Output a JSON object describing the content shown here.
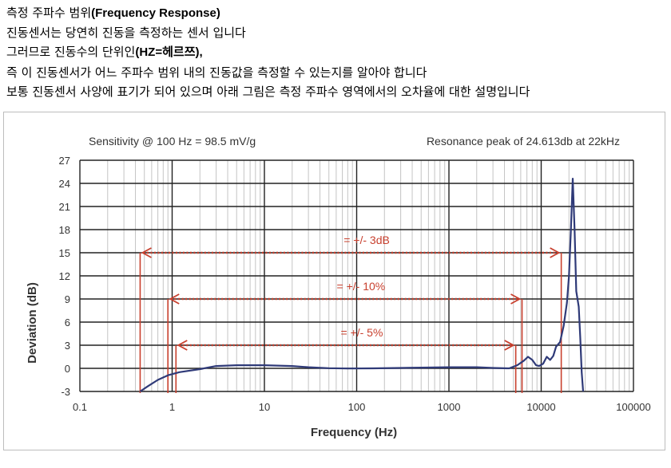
{
  "intro": {
    "line1_text": "측정 주파수 범위",
    "line1_bold": "(Frequency Response)",
    "line2": "진동센서는 당연히 진동을 측정하는 센서 입니다",
    "line3_text": "그러므로 진동수의 단위인",
    "line3_bold": "(HZ=헤르쯔),",
    "line4": "즉 이 진동센서가 어느 주파수 범위 내의 진동값을 측정할 수 있는지를 알아야 합니다",
    "line5": "보통 진동센서 사양에 표기가 되어 있으며 아래 그림은 측정 주파수 영역에서의 오차율에 대한 설명입니다"
  },
  "chart_data": {
    "type": "line",
    "top_left_note": "Sensitivity @ 100 Hz = 98.5 mV/g",
    "top_right_note": "Resonance peak of 24.613db at 22kHz",
    "xlabel": "Frequency (Hz)",
    "ylabel": "Deviation (dB)",
    "x_scale": "log",
    "xlim": [
      0.1,
      100000
    ],
    "ylim": [
      -3,
      27
    ],
    "x_ticks": [
      "0.1",
      "1",
      "10",
      "100",
      "1000",
      "10000",
      "100000"
    ],
    "y_ticks": [
      "-3",
      "0",
      "3",
      "6",
      "9",
      "12",
      "15",
      "18",
      "21",
      "24",
      "27"
    ],
    "grid": true,
    "line_color": "#2f3a78",
    "annotation_color": "#c8402e",
    "series": [
      {
        "points": [
          [
            0.45,
            -3
          ],
          [
            0.55,
            -2.3
          ],
          [
            0.7,
            -1.5
          ],
          [
            0.9,
            -0.9
          ],
          [
            1.2,
            -0.5
          ],
          [
            2,
            -0.1
          ],
          [
            3,
            0.3
          ],
          [
            5,
            0.4
          ],
          [
            10,
            0.4
          ],
          [
            20,
            0.3
          ],
          [
            30,
            0.15
          ],
          [
            50,
            0.02
          ],
          [
            80,
            -0.02
          ],
          [
            150,
            0.0
          ],
          [
            300,
            0.05
          ],
          [
            600,
            0.1
          ],
          [
            1000,
            0.15
          ],
          [
            2000,
            0.15
          ],
          [
            3000,
            0.05
          ],
          [
            4500,
            0.0
          ],
          [
            5500,
            0.4
          ],
          [
            6500,
            1.0
          ],
          [
            7200,
            1.5
          ],
          [
            8000,
            1.1
          ],
          [
            8800,
            0.4
          ],
          [
            9500,
            0.3
          ],
          [
            10500,
            0.6
          ],
          [
            11500,
            1.5
          ],
          [
            12500,
            1.1
          ],
          [
            13500,
            1.6
          ],
          [
            14500,
            2.8
          ],
          [
            16000,
            3.4
          ],
          [
            17500,
            5.5
          ],
          [
            19000,
            8.5
          ],
          [
            20000,
            12
          ],
          [
            21000,
            18
          ],
          [
            22000,
            24.613
          ],
          [
            23000,
            18
          ],
          [
            24000,
            10
          ],
          [
            25500,
            8
          ],
          [
            26500,
            4
          ],
          [
            27500,
            -0.5
          ],
          [
            28500,
            -3
          ]
        ]
      }
    ],
    "bands": [
      {
        "label": "= +/- 3dB",
        "y": 15,
        "x_from": 0.45,
        "x_to": 16500
      },
      {
        "label": "= +/- 10%",
        "y": 9,
        "x_from": 0.9,
        "x_to": 6200
      },
      {
        "label": "= +/- 5%",
        "y": 3,
        "x_from": 1.1,
        "x_to": 5300
      }
    ]
  }
}
